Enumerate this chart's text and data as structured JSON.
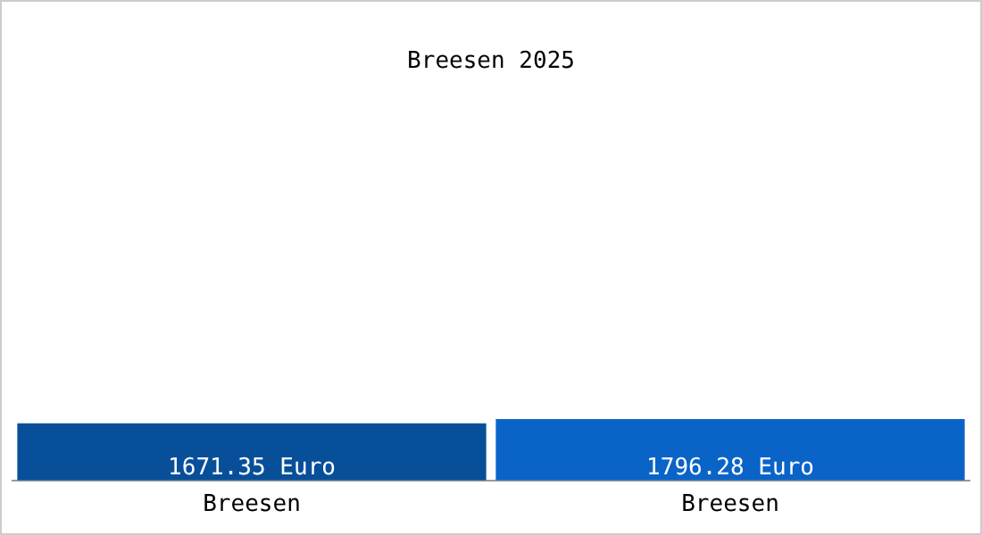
{
  "chart_data": {
    "type": "bar",
    "title": "Breesen 2025",
    "categories": [
      "Breesen",
      "Breesen"
    ],
    "values": [
      1671.35,
      1796.28
    ],
    "colors": [
      "#084f9a",
      "#0a64c8"
    ],
    "value_labels": [
      "1671.35 Euro",
      "1796.28 Euro"
    ],
    "tick_labels": "x",
    "legend": false,
    "grid": false
  }
}
